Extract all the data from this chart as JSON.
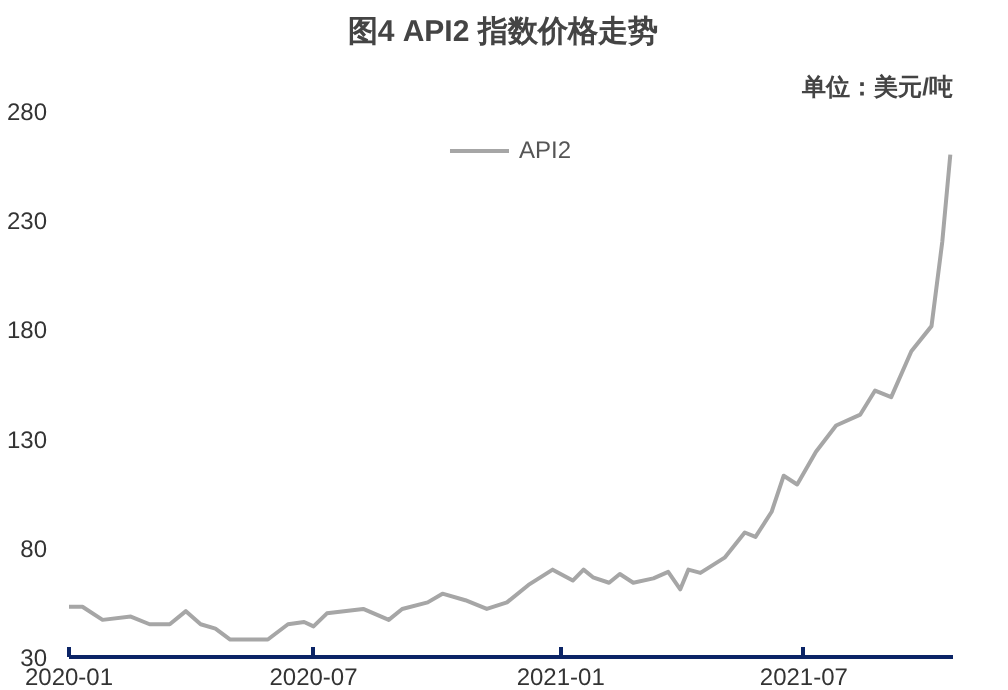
{
  "chart_data": {
    "type": "line",
    "title": "图4   API2 指数价格走势",
    "annotations": [
      "单位：美元/吨"
    ],
    "x": [
      "2020-01-01",
      "2020-01-11",
      "2020-01-26",
      "2020-02-16",
      "2020-03-01",
      "2020-03-16",
      "2020-03-28",
      "2020-04-08",
      "2020-04-19",
      "2020-04-30",
      "2020-05-28",
      "2020-06-12",
      "2020-06-24",
      "2020-07-01",
      "2020-07-11",
      "2020-08-07",
      "2020-08-26",
      "2020-09-05",
      "2020-09-24",
      "2020-10-05",
      "2020-10-22",
      "2020-11-07",
      "2020-11-22",
      "2020-12-08",
      "2020-12-26",
      "2021-01-10",
      "2021-01-18",
      "2021-01-25",
      "2021-02-06",
      "2021-02-14",
      "2021-02-24",
      "2021-03-11",
      "2021-03-22",
      "2021-03-31",
      "2021-04-06",
      "2021-04-15",
      "2021-05-03",
      "2021-05-18",
      "2021-05-26",
      "2021-06-07",
      "2021-06-16",
      "2021-06-26",
      "2021-07-10",
      "2021-07-25",
      "2021-08-12",
      "2021-08-23",
      "2021-09-04",
      "2021-09-19",
      "2021-10-04",
      "2021-10-12",
      "2021-10-18"
    ],
    "series": [
      {
        "name": "API2",
        "color": "#a6a6a6",
        "values": [
          53,
          53,
          47,
          48.5,
          45,
          45,
          51,
          45,
          43,
          38,
          38,
          45,
          46,
          44,
          50,
          52,
          47,
          52,
          55,
          59,
          56,
          52,
          55,
          63,
          70,
          65,
          70,
          66.5,
          64,
          68,
          64,
          66,
          69,
          61,
          70,
          68.5,
          75.5,
          87,
          85,
          96.5,
          113,
          109,
          124,
          136,
          141,
          152,
          149,
          170,
          181.5,
          220,
          260
        ]
      }
    ],
    "xlim": [
      "2020-01-01",
      "2021-10-20"
    ],
    "xticks": [
      "2020-01",
      "2020-07",
      "2021-01",
      "2021-07"
    ],
    "ylim": [
      30,
      280
    ],
    "yticks": [
      30,
      80,
      130,
      180,
      230,
      280
    ],
    "legend": "top",
    "grid": false
  }
}
